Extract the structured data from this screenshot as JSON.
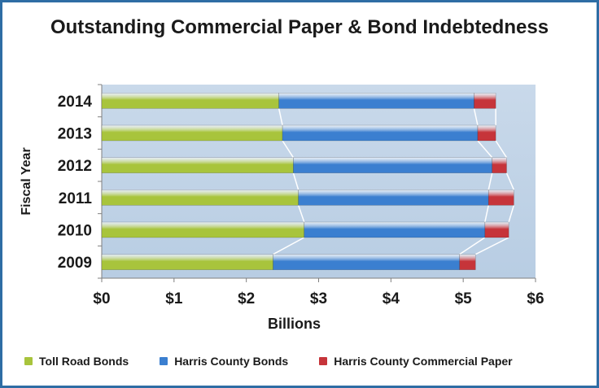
{
  "colors": {
    "frame": "#2e6da4",
    "plot_bg": "#b8cde3",
    "toll": "#a8c43c",
    "county_bonds": "#3b7fd0",
    "commercial_paper": "#c6343a",
    "connector": "#ffffff"
  },
  "chart_data": {
    "type": "bar",
    "orientation": "horizontal",
    "stacked": true,
    "title": "Outstanding Commercial Paper & Bond Indebtedness",
    "xlabel": "Billions",
    "ylabel": "Fiscal Year",
    "categories": [
      "2014",
      "2013",
      "2012",
      "2011",
      "2010",
      "2009"
    ],
    "xlim": [
      0,
      6
    ],
    "xticks": [
      "$0",
      "$1",
      "$2",
      "$3",
      "$4",
      "$5",
      "$6"
    ],
    "series": [
      {
        "name": "Toll Road Bonds",
        "color": "#a8c43c",
        "values": [
          2.45,
          2.5,
          2.65,
          2.72,
          2.8,
          2.37
        ]
      },
      {
        "name": "Harris County Bonds",
        "color": "#3b7fd0",
        "values": [
          2.7,
          2.7,
          2.75,
          2.63,
          2.5,
          2.58
        ]
      },
      {
        "name": "Harris County Commercial Paper",
        "color": "#c6343a",
        "values": [
          0.3,
          0.25,
          0.2,
          0.35,
          0.33,
          0.22
        ]
      }
    ],
    "connector_lines": true,
    "legend_position": "bottom"
  }
}
